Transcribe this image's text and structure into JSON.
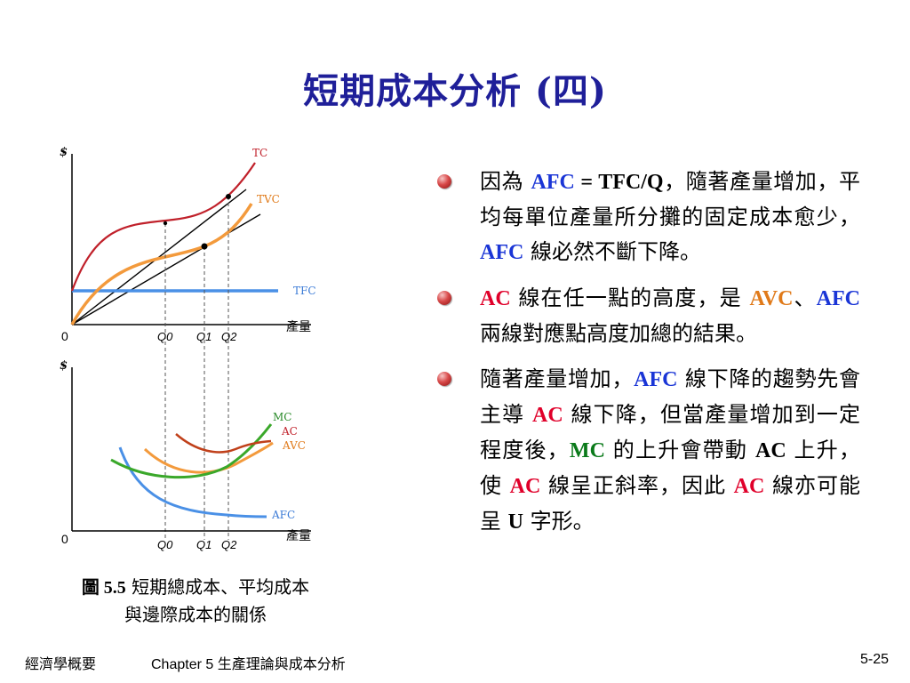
{
  "title": "短期成本分析 (四)",
  "figure": {
    "top_panel": {
      "y_axis_label": "$",
      "x_axis_label": "產量",
      "origin_label": "0",
      "curve_labels": {
        "tc": "TC",
        "tvc": "TVC",
        "tfc": "TFC"
      },
      "quantity_ticks": [
        "Q0",
        "Q1",
        "Q2"
      ]
    },
    "bottom_panel": {
      "y_axis_label": "$",
      "x_axis_label": "產量",
      "origin_label": "0",
      "curve_labels": {
        "mc": "MC",
        "ac": "AC",
        "avc": "AVC",
        "afc": "AFC"
      },
      "quantity_ticks": [
        "Q0",
        "Q1",
        "Q2"
      ]
    },
    "colors": {
      "tc": "#c0202a",
      "tvc": "#f39a3c",
      "tfc": "#4a90e6",
      "mc": "#3aa82a",
      "ac": "#c0401a",
      "avc": "#f39a3c",
      "afc": "#4a90e6",
      "axis": "#000000",
      "guide": "#555555"
    },
    "caption": {
      "fig_no": "圖 5.5",
      "line1": "短期總成本、平均成本",
      "line2": "與邊際成本的關係"
    }
  },
  "bullets": [
    {
      "segments": [
        {
          "text": "因為 ",
          "style": "black"
        },
        {
          "text": "AFC",
          "style": "blue kw"
        },
        {
          "text": " = TFC/Q",
          "style": "black kw"
        },
        {
          "text": "，隨著產量增加，平均每單位產量所分攤的固定成本愈少，",
          "style": "black"
        },
        {
          "text": "AFC",
          "style": "blue kw"
        },
        {
          "text": " 線必然不斷下降。",
          "style": "black"
        }
      ]
    },
    {
      "segments": [
        {
          "text": "AC",
          "style": "red kw"
        },
        {
          "text": " 線在任一點的高度，是 ",
          "style": "black"
        },
        {
          "text": "AVC",
          "style": "orange kw"
        },
        {
          "text": "、",
          "style": "black"
        },
        {
          "text": "AFC",
          "style": "blue kw"
        },
        {
          "text": " 兩線對應點高度加總的結果。",
          "style": "black"
        }
      ]
    },
    {
      "segments": [
        {
          "text": "隨著產量增加，",
          "style": "black"
        },
        {
          "text": "AFC",
          "style": "blue kw"
        },
        {
          "text": " 線下降的趨勢先會主導 ",
          "style": "black"
        },
        {
          "text": "AC",
          "style": "red kw"
        },
        {
          "text": " 線下降，但當產量增加到一定程度後，",
          "style": "black"
        },
        {
          "text": "MC",
          "style": "green kw"
        },
        {
          "text": " 的上升會帶動 ",
          "style": "black"
        },
        {
          "text": "AC",
          "style": "black kw"
        },
        {
          "text": " 上升，使 ",
          "style": "black"
        },
        {
          "text": "AC",
          "style": "red kw"
        },
        {
          "text": " 線呈正斜率，因此 ",
          "style": "black"
        },
        {
          "text": "AC",
          "style": "red kw"
        },
        {
          "text": " 線亦可能呈 ",
          "style": "black"
        },
        {
          "text": "U",
          "style": "black kw"
        },
        {
          "text": " 字形。",
          "style": "black"
        }
      ]
    }
  ],
  "footer": {
    "left": "經濟學概要",
    "center": "Chapter 5 生產理論與成本分析",
    "right": "5-25"
  }
}
